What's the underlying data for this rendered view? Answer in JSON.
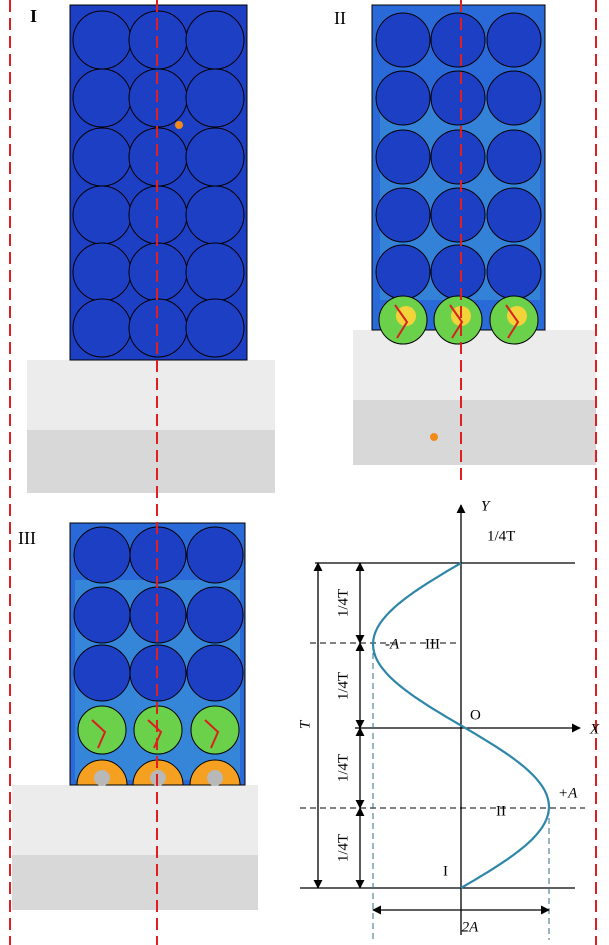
{
  "panels": [
    {
      "label": "I"
    },
    {
      "label": "II"
    },
    {
      "label": "III"
    }
  ],
  "diagram": {
    "y_axis": "Y",
    "x_axis": "X",
    "origin": "O",
    "top_label": "1/4T",
    "quarter_labels": [
      "1/4T",
      "1/4T",
      "1/4T",
      "1/4T"
    ],
    "period": "T",
    "minus_amplitude": "-A",
    "plus_amplitude": "+A",
    "width": "2A",
    "state_labels": [
      "III",
      "II",
      "I"
    ]
  }
}
